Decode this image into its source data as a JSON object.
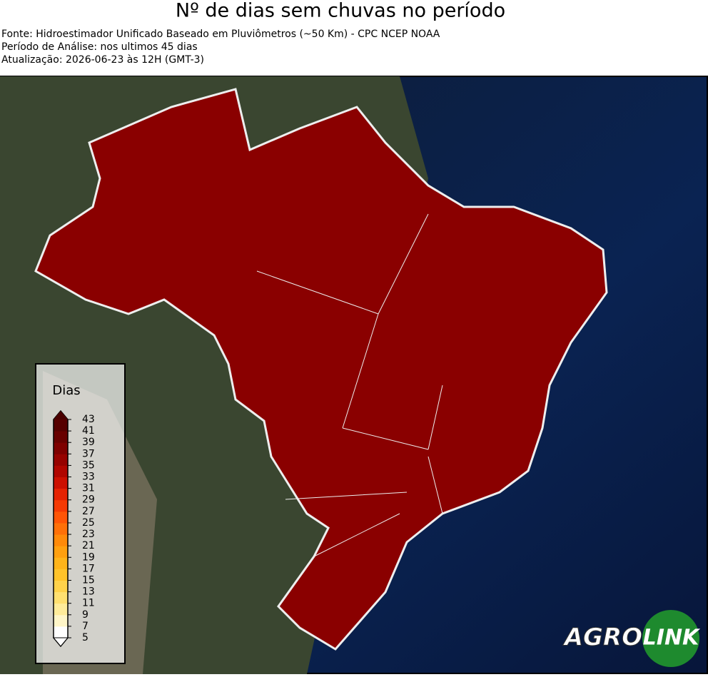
{
  "header": {
    "title": "Nº de dias sem chuvas no período",
    "lines": [
      "Fonte: Hidroestimador Unificado Baseado em Pluviômetros (~50 Km) - CPC NCEP NOAA",
      "Período de Análise: nos ultimos 45 dias",
      "Atualização: 2026-06-23 às 12H (GMT-3)"
    ]
  },
  "legend": {
    "title": "Dias",
    "ticks": [
      5,
      7,
      9,
      11,
      13,
      15,
      17,
      19,
      21,
      23,
      25,
      27,
      29,
      31,
      33,
      35,
      37,
      39,
      41,
      43
    ],
    "colors": [
      "#ffffff",
      "#fff6c8",
      "#ffec9a",
      "#ffe070",
      "#ffd24a",
      "#ffc32a",
      "#ffb41a",
      "#ffa010",
      "#ff8a0a",
      "#ff7008",
      "#ff5506",
      "#f53a04",
      "#e52202",
      "#cc1000",
      "#b00600",
      "#960200",
      "#7e0000",
      "#680000",
      "#560000"
    ]
  },
  "logo": {
    "left": "AGRO",
    "right": "LINK"
  }
}
